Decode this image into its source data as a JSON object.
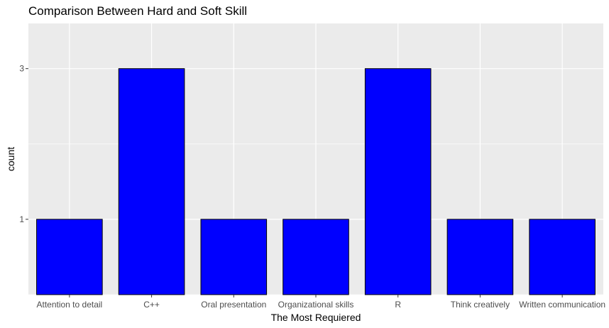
{
  "chart_data": {
    "type": "bar",
    "title": "Comparison Between Hard and Soft Skill",
    "xlabel": "The Most Requiered",
    "ylabel": "count",
    "categories": [
      "Attention to detail",
      "C++",
      "Oral presentation",
      "Organizational skills",
      "R",
      "Think creatively",
      "Written communication"
    ],
    "values": [
      1,
      3,
      1,
      1,
      3,
      1,
      1
    ],
    "y_ticks": [
      1,
      3
    ],
    "y_tick_labels": [
      "1",
      "3"
    ],
    "ylim": [
      0,
      3.6
    ],
    "grid": true,
    "bar_color": "#0000ff",
    "bar_edge_color": "#000000",
    "panel_color": "#ebebeb",
    "grid_color": "#ffffff"
  }
}
